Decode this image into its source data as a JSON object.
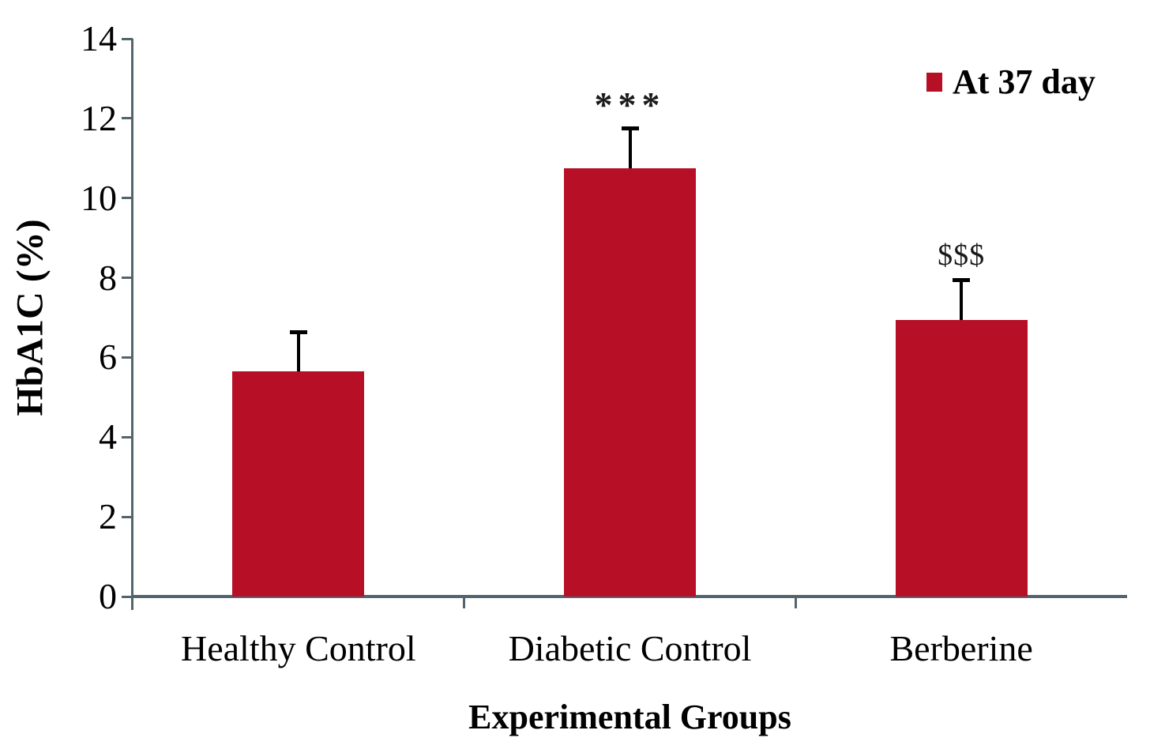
{
  "chart_data": {
    "type": "bar",
    "title": "",
    "categories": [
      "Healthy Control",
      "Diabetic Control",
      "Berberine"
    ],
    "series": [
      {
        "name": "At 37 day",
        "values": [
          5.65,
          10.75,
          6.95
        ],
        "errors_plus": [
          1.0,
          1.0,
          1.0
        ]
      }
    ],
    "annotations": [
      "",
      "***",
      "$$$"
    ],
    "xlabel": "Experimental Groups",
    "ylabel": "HbA1C (%)",
    "ylim": [
      0,
      14
    ],
    "y_ticks": [
      0,
      2,
      4,
      6,
      8,
      10,
      12,
      14
    ],
    "grid": false,
    "legend": {
      "label": "At 37 day",
      "position": "top-right"
    },
    "colors": {
      "bar": "#B60F26",
      "axis": "#54646C",
      "error_bar": "#000000",
      "text": "#000000"
    }
  }
}
